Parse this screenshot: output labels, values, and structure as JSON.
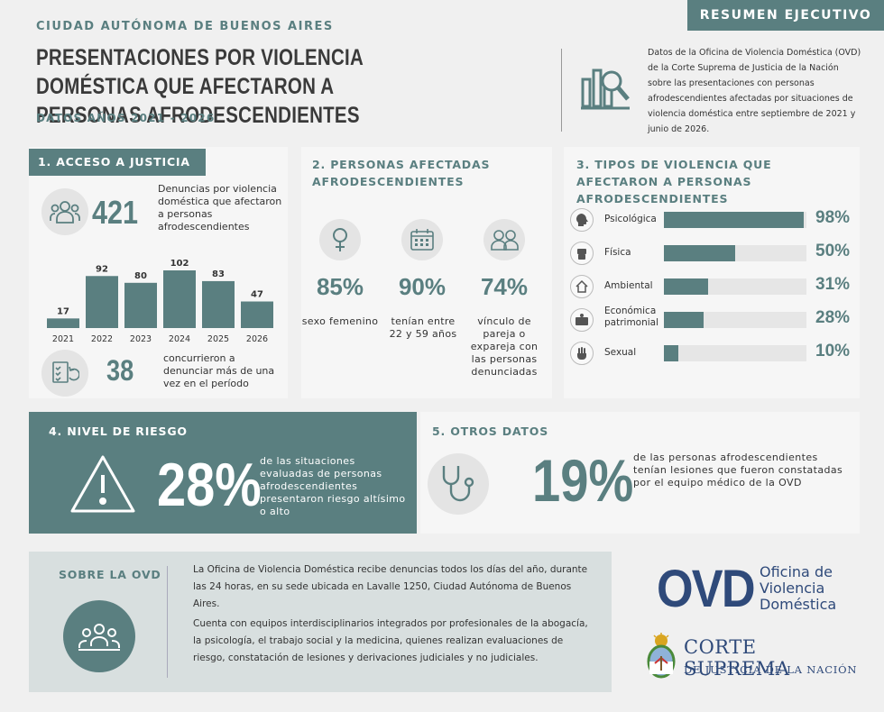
{
  "header": {
    "region": "CIUDAD AUTÓNOMA DE BUENOS AIRES",
    "title": "PRESENTACIONES POR VIOLENCIA DOMÉSTICA QUE AFECTARON A PERSONAS AFRODESCENDIENTES",
    "subtitle": "DATOS AÑOS 2021 - 2026",
    "badge": "RESUMEN EJECUTIVO",
    "description": "Datos de la Oficina de Violencia Doméstica (OVD) de la Corte Suprema de Justicia de la Nación sobre las presentaciones con personas afrodescendientes afectadas por situaciones de violencia doméstica entre septiembre de 2021 y junio de 2026."
  },
  "section1": {
    "label": "1.  ACCESO A JUSTICIA",
    "total": "421",
    "total_text": "Denuncias por violencia doméstica que afectaron a personas afrodescendientes",
    "repeat": "38",
    "repeat_text": "concurrieron a denunciar más de una vez en el período"
  },
  "chart_data": {
    "type": "bar",
    "categories": [
      "2021",
      "2022",
      "2023",
      "2024",
      "2025",
      "2026"
    ],
    "values": [
      17,
      92,
      80,
      102,
      83,
      47
    ]
  },
  "section2": {
    "label": "2. PERSONAS AFECTADAS AFRODESCENDIENTES",
    "stats": [
      {
        "icon": "female-icon",
        "pct": "85%",
        "text": "sexo femenino"
      },
      {
        "icon": "calendar-icon",
        "pct": "90%",
        "text": "tenían entre 22 y 59 años"
      },
      {
        "icon": "couple-icon",
        "pct": "74%",
        "text": "vínculo de pareja o expareja con las personas denunciadas"
      }
    ]
  },
  "section3": {
    "label": "3. TIPOS DE VIOLENCIA QUE AFECTARON A PERSONAS AFRODESCENDIENTES",
    "rows": [
      {
        "icon": "head-icon",
        "label": "Psicológica",
        "value": 98,
        "pct": "98%"
      },
      {
        "icon": "fist-icon",
        "label": "Física",
        "value": 50,
        "pct": "50%"
      },
      {
        "icon": "house-icon",
        "label": "Ambiental",
        "value": 31,
        "pct": "31%"
      },
      {
        "icon": "wallet-icon",
        "label": "Económica patrimonial",
        "value": 28,
        "pct": "28%"
      },
      {
        "icon": "hand-icon",
        "label": "Sexual",
        "value": 10,
        "pct": "10%"
      }
    ]
  },
  "section4": {
    "label": "4. NIVEL DE RIESGO",
    "pct": "28%",
    "text": "de las situaciones evaluadas de personas afrodescendientes presentaron riesgo altísimo o alto"
  },
  "section5": {
    "label": "5. OTROS DATOS",
    "pct": "19%",
    "text": "de las personas afrodescendientes tenían lesiones que fueron constatadas por el equipo médico de la OVD"
  },
  "about": {
    "label": "SOBRE LA OVD",
    "p1": "La Oficina de Violencia Doméstica recibe denuncias todos los días del año, durante las 24 horas, en su sede ubicada en Lavalle 1250, Ciudad Autónoma de Buenos Aires.",
    "p2": "Cuenta con equipos interdisciplinarios integrados por profesionales de la abogacía, la psicología, el trabajo social y la medicina, quienes realizan evaluaciones de riesgo, constatación de lesiones y derivaciones judiciales y no judiciales."
  },
  "logos": {
    "ovd": "OVD",
    "ovd_line1": "Oficina de",
    "ovd_line2": "Violencia",
    "ovd_line3": "Doméstica",
    "cs_line1": "CORTE SUPREMA",
    "cs_line2": "DE JUSTICIA DE LA NACIÓN"
  },
  "colors": {
    "accent": "#5a7f80",
    "navy": "#2f4a7a"
  }
}
